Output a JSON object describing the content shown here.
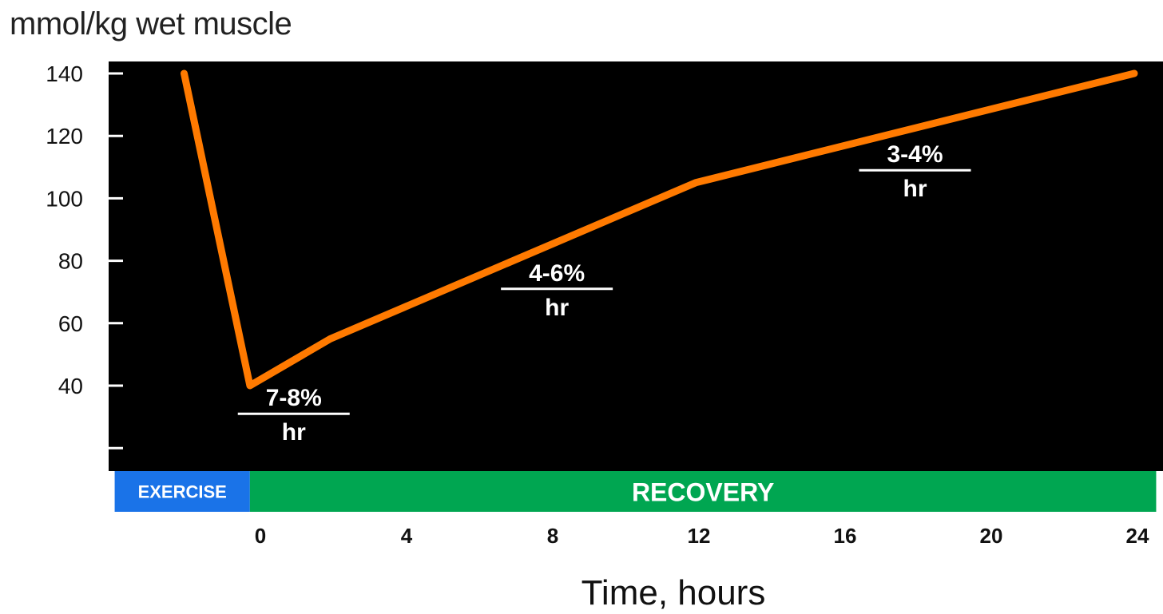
{
  "chart_data": {
    "type": "line",
    "title": "",
    "ylabel": "mmol/kg wet muscle",
    "xlabel": "Time, hours",
    "x_ticks": [
      0,
      4,
      8,
      12,
      16,
      20,
      24
    ],
    "y_ticks": [
      40,
      60,
      80,
      100,
      120,
      140
    ],
    "xlim": [
      -3.9,
      24.6
    ],
    "ylim": [
      20,
      140
    ],
    "grid": false,
    "series": [
      {
        "x": [
          -2.0,
          -0.2,
          2.0,
          12.0,
          24.0
        ],
        "y": [
          140,
          40,
          55,
          105,
          140
        ],
        "color": "#ff7a00"
      }
    ],
    "phases": [
      {
        "label": "EXERCISE",
        "x_start": -3.9,
        "x_end": -0.2,
        "color": "#1a73e8"
      },
      {
        "label": "RECOVERY",
        "x_start": -0.2,
        "x_end": 24.6,
        "color": "#00a651"
      }
    ],
    "annotations": [
      {
        "numerator": "7-8%",
        "denominator": "hr",
        "x": 1.0,
        "y": 31
      },
      {
        "numerator": "4-6%",
        "denominator": "hr",
        "x": 8.2,
        "y": 71
      },
      {
        "numerator": "3-4%",
        "denominator": "hr",
        "x": 18.0,
        "y": 109
      }
    ],
    "colors": {
      "plot_background": "#000000",
      "line": "#ff7a00",
      "annotation_text": "#ffffff"
    }
  }
}
